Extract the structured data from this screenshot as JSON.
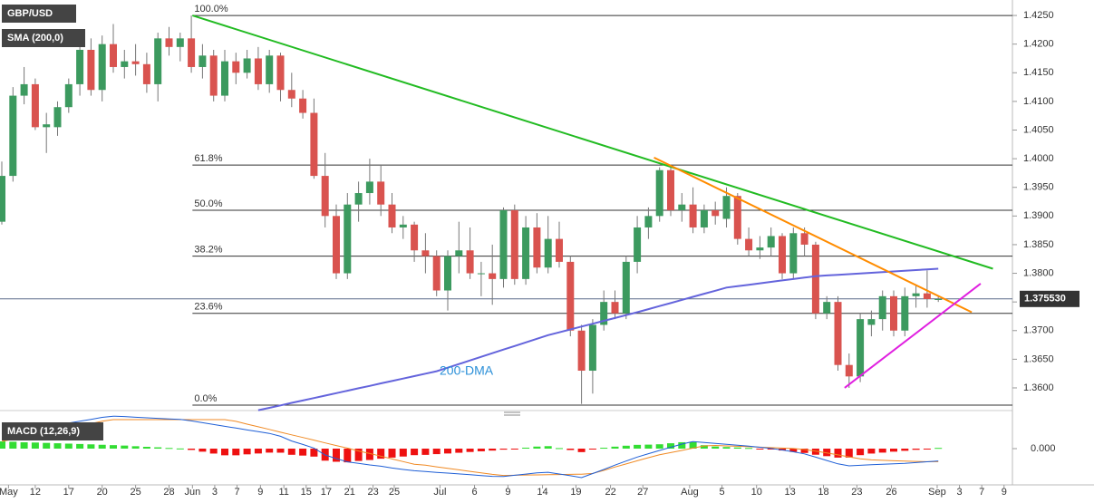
{
  "chart_data": {
    "type": "candlestick",
    "symbol": "GBP/USD",
    "indicator_label": "SMA (200,0)",
    "up_color": "#3c9a5f",
    "down_color": "#d9534f",
    "ylim": [
      1.3562,
      1.4277
    ],
    "yticks": [
      {
        "value": 1.425,
        "label": "1.4250"
      },
      {
        "value": 1.42,
        "label": "1.4200"
      },
      {
        "value": 1.415,
        "label": "1.4150"
      },
      {
        "value": 1.41,
        "label": "1.4100"
      },
      {
        "value": 1.405,
        "label": "1.4050"
      },
      {
        "value": 1.4,
        "label": "1.4000"
      },
      {
        "value": 1.395,
        "label": "1.3950"
      },
      {
        "value": 1.39,
        "label": "1.3900"
      },
      {
        "value": 1.385,
        "label": "1.3850"
      },
      {
        "value": 1.38,
        "label": "1.3800"
      },
      {
        "value": 1.375,
        "label": "1.3750"
      },
      {
        "value": 1.37,
        "label": "1.3700"
      },
      {
        "value": 1.365,
        "label": "1.3650"
      },
      {
        "value": 1.36,
        "label": "1.3600"
      }
    ],
    "xticks": [
      {
        "value": 0.6,
        "label": "May"
      },
      {
        "value": 3,
        "label": "12"
      },
      {
        "value": 6,
        "label": "17"
      },
      {
        "value": 9,
        "label": "20"
      },
      {
        "value": 12,
        "label": "25"
      },
      {
        "value": 15,
        "label": "28"
      },
      {
        "value": 17.1,
        "label": "Jun"
      },
      {
        "value": 19.1,
        "label": "3"
      },
      {
        "value": 21.1,
        "label": "7"
      },
      {
        "value": 23.2,
        "label": "9"
      },
      {
        "value": 25.3,
        "label": "11"
      },
      {
        "value": 27.3,
        "label": "15"
      },
      {
        "value": 29.1,
        "label": "17"
      },
      {
        "value": 31.2,
        "label": "21"
      },
      {
        "value": 33.3,
        "label": "23"
      },
      {
        "value": 35.2,
        "label": "25"
      },
      {
        "value": 39.3,
        "label": "Jul"
      },
      {
        "value": 42.4,
        "label": "6"
      },
      {
        "value": 45.4,
        "label": "9"
      },
      {
        "value": 48.5,
        "label": "14"
      },
      {
        "value": 51.5,
        "label": "19"
      },
      {
        "value": 54.6,
        "label": "22"
      },
      {
        "value": 57.5,
        "label": "27"
      },
      {
        "value": 61.7,
        "label": "Aug"
      },
      {
        "value": 64.6,
        "label": "5"
      },
      {
        "value": 67.7,
        "label": "10"
      },
      {
        "value": 70.7,
        "label": "13"
      },
      {
        "value": 73.7,
        "label": "18"
      },
      {
        "value": 76.7,
        "label": "23"
      },
      {
        "value": 79.8,
        "label": "26"
      },
      {
        "value": 83.9,
        "label": "Sep"
      },
      {
        "value": 85.9,
        "label": "3"
      },
      {
        "value": 87.9,
        "label": "7"
      },
      {
        "value": 89.9,
        "label": "9"
      }
    ],
    "ohlc": [
      [
        1.389,
        1.3995,
        1.3885,
        1.397
      ],
      [
        1.397,
        1.4125,
        1.396,
        1.411
      ],
      [
        1.411,
        1.416,
        1.4095,
        1.413
      ],
      [
        1.413,
        1.414,
        1.405,
        1.4055
      ],
      [
        1.4055,
        1.408,
        1.401,
        1.406
      ],
      [
        1.4055,
        1.41,
        1.404,
        1.409
      ],
      [
        1.409,
        1.414,
        1.408,
        1.413
      ],
      [
        1.413,
        1.42,
        1.411,
        1.419
      ],
      [
        1.419,
        1.421,
        1.411,
        1.412
      ],
      [
        1.412,
        1.4215,
        1.41,
        1.42
      ],
      [
        1.42,
        1.4235,
        1.415,
        1.416
      ],
      [
        1.416,
        1.419,
        1.414,
        1.417
      ],
      [
        1.417,
        1.42,
        1.4145,
        1.4165
      ],
      [
        1.4165,
        1.4185,
        1.4115,
        1.413
      ],
      [
        1.413,
        1.422,
        1.41,
        1.421
      ],
      [
        1.421,
        1.423,
        1.418,
        1.4195
      ],
      [
        1.4195,
        1.422,
        1.417,
        1.421
      ],
      [
        1.421,
        1.425,
        1.415,
        1.416
      ],
      [
        1.416,
        1.42,
        1.414,
        1.418
      ],
      [
        1.418,
        1.419,
        1.41,
        1.411
      ],
      [
        1.411,
        1.419,
        1.41,
        1.417
      ],
      [
        1.417,
        1.4185,
        1.413,
        1.415
      ],
      [
        1.415,
        1.419,
        1.414,
        1.4175
      ],
      [
        1.4175,
        1.4195,
        1.412,
        1.413
      ],
      [
        1.413,
        1.419,
        1.4115,
        1.418
      ],
      [
        1.418,
        1.4185,
        1.41,
        1.412
      ],
      [
        1.412,
        1.415,
        1.409,
        1.4105
      ],
      [
        1.4105,
        1.412,
        1.407,
        1.408
      ],
      [
        1.408,
        1.4105,
        1.3965,
        1.397
      ],
      [
        1.397,
        1.401,
        1.388,
        1.39
      ],
      [
        1.39,
        1.392,
        1.379,
        1.38
      ],
      [
        1.38,
        1.394,
        1.379,
        1.392
      ],
      [
        1.392,
        1.396,
        1.389,
        1.394
      ],
      [
        1.394,
        1.4,
        1.392,
        1.396
      ],
      [
        1.396,
        1.399,
        1.39,
        1.392
      ],
      [
        1.392,
        1.394,
        1.387,
        1.388
      ],
      [
        1.388,
        1.39,
        1.386,
        1.3885
      ],
      [
        1.3885,
        1.389,
        1.382,
        1.384
      ],
      [
        1.384,
        1.387,
        1.38,
        1.383
      ],
      [
        1.383,
        1.384,
        1.376,
        1.377
      ],
      [
        1.377,
        1.384,
        1.3735,
        1.383
      ],
      [
        1.383,
        1.389,
        1.38,
        1.384
      ],
      [
        1.384,
        1.388,
        1.379,
        1.38
      ],
      [
        1.38,
        1.382,
        1.376,
        1.38
      ],
      [
        1.38,
        1.385,
        1.3745,
        1.379
      ],
      [
        1.379,
        1.3915,
        1.3775,
        1.391
      ],
      [
        1.391,
        1.392,
        1.378,
        1.379
      ],
      [
        1.379,
        1.39,
        1.378,
        1.388
      ],
      [
        1.388,
        1.3905,
        1.38,
        1.381
      ],
      [
        1.381,
        1.39,
        1.38,
        1.386
      ],
      [
        1.386,
        1.389,
        1.381,
        1.382
      ],
      [
        1.382,
        1.383,
        1.369,
        1.37
      ],
      [
        1.37,
        1.371,
        1.3572,
        1.363
      ],
      [
        1.363,
        1.372,
        1.359,
        1.371
      ],
      [
        1.371,
        1.377,
        1.37,
        1.375
      ],
      [
        1.375,
        1.377,
        1.372,
        1.373
      ],
      [
        1.373,
        1.383,
        1.372,
        1.382
      ],
      [
        1.382,
        1.39,
        1.38,
        1.388
      ],
      [
        1.388,
        1.3915,
        1.386,
        1.39
      ],
      [
        1.39,
        1.3985,
        1.389,
        1.398
      ],
      [
        1.398,
        1.3985,
        1.39,
        1.391
      ],
      [
        1.391,
        1.394,
        1.389,
        1.392
      ],
      [
        1.392,
        1.395,
        1.387,
        1.388
      ],
      [
        1.388,
        1.392,
        1.387,
        1.391
      ],
      [
        1.391,
        1.3925,
        1.3885,
        1.39
      ],
      [
        1.3895,
        1.395,
        1.388,
        1.3935
      ],
      [
        1.3935,
        1.394,
        1.385,
        1.386
      ],
      [
        1.386,
        1.388,
        1.383,
        1.384
      ],
      [
        1.384,
        1.3865,
        1.3825,
        1.3845
      ],
      [
        1.3845,
        1.388,
        1.383,
        1.3865
      ],
      [
        1.3865,
        1.387,
        1.379,
        1.38
      ],
      [
        1.38,
        1.388,
        1.379,
        1.387
      ],
      [
        1.387,
        1.388,
        1.383,
        1.385
      ],
      [
        1.385,
        1.3855,
        1.372,
        1.373
      ],
      [
        1.373,
        1.376,
        1.372,
        1.375
      ],
      [
        1.375,
        1.376,
        1.363,
        1.364
      ],
      [
        1.364,
        1.366,
        1.36,
        1.362
      ],
      [
        1.362,
        1.373,
        1.361,
        1.372
      ],
      [
        1.371,
        1.3735,
        1.369,
        1.372
      ],
      [
        1.372,
        1.377,
        1.37,
        1.376
      ],
      [
        1.376,
        1.377,
        1.369,
        1.37
      ],
      [
        1.37,
        1.3775,
        1.369,
        1.376
      ],
      [
        1.376,
        1.378,
        1.374,
        1.3765
      ],
      [
        1.3765,
        1.3805,
        1.374,
        1.3755
      ],
      [
        1.3755,
        1.376,
        1.375,
        1.3755
      ]
    ],
    "last_price": {
      "value": 1.37553,
      "label": "1.375530"
    },
    "sma": {
      "name": "200-DMA",
      "color": "#6464dc",
      "values": [
        null,
        null,
        null,
        null,
        null,
        null,
        null,
        null,
        null,
        null,
        null,
        null,
        null,
        null,
        null,
        null,
        null,
        null,
        null,
        null,
        null,
        null,
        null,
        1.3561,
        1.35652,
        1.35695,
        1.35738,
        1.3578,
        1.35823,
        1.35865,
        1.35908,
        1.3595,
        1.35993,
        1.36035,
        1.36078,
        1.3612,
        1.36163,
        1.36205,
        1.36248,
        1.3629,
        1.36353,
        1.36416,
        1.36479,
        1.36542,
        1.36605,
        1.36668,
        1.36731,
        1.36794,
        1.36857,
        1.3692,
        1.3697,
        1.3702,
        1.3707,
        1.3712,
        1.3717,
        1.3722,
        1.3727,
        1.3732,
        1.37374,
        1.37428,
        1.37481,
        1.37535,
        1.37589,
        1.37643,
        1.37696,
        1.3775,
        1.37775,
        1.378,
        1.37825,
        1.3785,
        1.37875,
        1.379,
        1.37925,
        1.3795,
        1.37962,
        1.37974,
        1.37985,
        1.37997,
        1.38009,
        1.38021,
        1.38033,
        1.38045,
        1.38056,
        1.38068,
        1.3808
      ]
    },
    "fib_levels": [
      {
        "label": "100.0%",
        "value": 1.425
      },
      {
        "label": "61.8%",
        "value": 1.3989
      },
      {
        "label": "50.0%",
        "value": 1.391
      },
      {
        "label": "38.2%",
        "value": 1.383
      },
      {
        "label": "23.6%",
        "value": 1.373
      },
      {
        "label": "0.0%",
        "value": 1.357
      }
    ],
    "trend_lines": [
      {
        "color": "#22bb22",
        "x": [
          17.1,
          88.9
        ],
        "values": [
          1.425,
          1.3808
        ]
      },
      {
        "color": "#ff8c00",
        "x": [
          58.5,
          87
        ],
        "values": [
          1.4002,
          1.3732
        ]
      },
      {
        "color": "#e020e0",
        "x": [
          75.6,
          87.8
        ],
        "values": [
          1.36,
          1.3782
        ]
      }
    ],
    "macd": {
      "label": "MACD (12,26,9)",
      "y2lim": [
        -0.005,
        0.005
      ],
      "y2ticks": [
        {
          "value": 0,
          "label": "0.000"
        }
      ],
      "up_color": "#33dd33",
      "down_color": "#ee1111",
      "histogram": [
        0.001,
        0.00095,
        0.00087,
        0.00084,
        0.00079,
        0.00074,
        0.00069,
        0.00064,
        0.00059,
        0.00053,
        0.00048,
        0.00042,
        0.00033,
        0.00025,
        0.00018,
        9e-05,
        2e-05,
        -0.00018,
        -0.00042,
        -0.00068,
        -0.00092,
        -0.00092,
        -0.00079,
        -0.00067,
        -0.00055,
        -0.00056,
        -0.00085,
        -0.00096,
        -0.0011,
        -0.00166,
        -0.00181,
        -0.00189,
        -0.0017,
        -0.00157,
        -0.00139,
        -0.00124,
        -0.00109,
        -0.0009,
        -0.00086,
        -0.00076,
        -0.00067,
        -0.00057,
        -0.00046,
        -0.00037,
        -0.00027,
        -0.00014,
        -1e-05,
        0.00013,
        0.00028,
        0.00034,
        7e-05,
        -0.00019,
        -0.00048,
        -1e-05,
        0.00012,
        0.00027,
        0.0004,
        0.00052,
        0.00055,
        0.0006,
        0.00074,
        0.00088,
        0.00089,
        0.00047,
        0.00029,
        0.00022,
        0.00016,
        9e-05,
        -1e-05,
        -0.0001,
        -0.00026,
        -0.00045,
        -0.0006,
        -0.00084,
        -0.00104,
        -0.00124,
        -0.00123,
        -0.0009,
        -0.00068,
        -0.00055,
        -0.00042,
        -0.0003,
        -0.00016,
        -1e-05,
        0.0001
      ],
      "macd_line": {
        "color": "#1f5fd6",
        "values": [
          0.002,
          0.00225,
          0.0025,
          0.00277,
          0.00302,
          0.00329,
          0.00354,
          0.00379,
          0.00404,
          0.00431,
          0.00448,
          0.00442,
          0.00433,
          0.00425,
          0.00418,
          0.00409,
          0.00402,
          0.00382,
          0.00358,
          0.00332,
          0.00308,
          0.00284,
          0.00258,
          0.00234,
          0.0021,
          0.0017,
          0.00105,
          0.00058,
          8e-05,
          -0.00087,
          -0.00138,
          -0.00182,
          -0.00202,
          -0.00225,
          -0.00243,
          -0.00267,
          -0.00288,
          -0.00305,
          -0.00315,
          -0.00327,
          -0.00338,
          -0.00349,
          -0.0036,
          -0.00371,
          -0.00382,
          -0.00384,
          -0.00368,
          -0.00351,
          -0.00334,
          -0.00326,
          -0.0035,
          -0.00374,
          -0.004,
          -0.00344,
          -0.00288,
          -0.00227,
          -0.00171,
          -0.00116,
          -0.0007,
          -0.00025,
          0.00019,
          0.00063,
          0.00097,
          0.00085,
          0.00073,
          0.0006,
          0.00048,
          0.00035,
          0.00019,
          4e-05,
          -0.00019,
          -0.00044,
          -0.00073,
          -0.00118,
          -0.00164,
          -0.0021,
          -0.00237,
          -0.0023,
          -0.00223,
          -0.00216,
          -0.00209,
          -0.00202,
          -0.00192,
          -0.00181,
          -0.0017
        ]
      },
      "signal_line": {
        "color": "#f08a24",
        "values": [
          0.001,
          0.0013,
          0.00163,
          0.00193,
          0.00223,
          0.00255,
          0.00285,
          0.00315,
          0.00345,
          0.00378,
          0.004,
          0.004,
          0.004,
          0.004,
          0.004,
          0.004,
          0.004,
          0.004,
          0.004,
          0.004,
          0.004,
          0.00376,
          0.00337,
          0.00301,
          0.00265,
          0.00226,
          0.0019,
          0.00154,
          0.00118,
          0.00079,
          0.00043,
          7e-05,
          -0.00032,
          -0.00068,
          -0.00104,
          -0.00143,
          -0.00179,
          -0.00215,
          -0.00229,
          -0.00251,
          -0.00271,
          -0.00292,
          -0.00314,
          -0.00334,
          -0.00355,
          -0.0037,
          -0.00367,
          -0.00364,
          -0.00362,
          -0.0036,
          -0.00357,
          -0.00355,
          -0.00352,
          -0.00343,
          -0.003,
          -0.00254,
          -0.00211,
          -0.00168,
          -0.00125,
          -0.00085,
          -0.00055,
          -0.00025,
          8e-05,
          0.00038,
          0.00044,
          0.00038,
          0.00032,
          0.00026,
          0.0002,
          0.00014,
          7e-05,
          1e-05,
          -0.00013,
          -0.00034,
          -0.0006,
          -0.00086,
          -0.00114,
          -0.0014,
          -0.00155,
          -0.00161,
          -0.00167,
          -0.00172,
          -0.00176,
          -0.0018,
          -0.0018
        ]
      }
    }
  }
}
